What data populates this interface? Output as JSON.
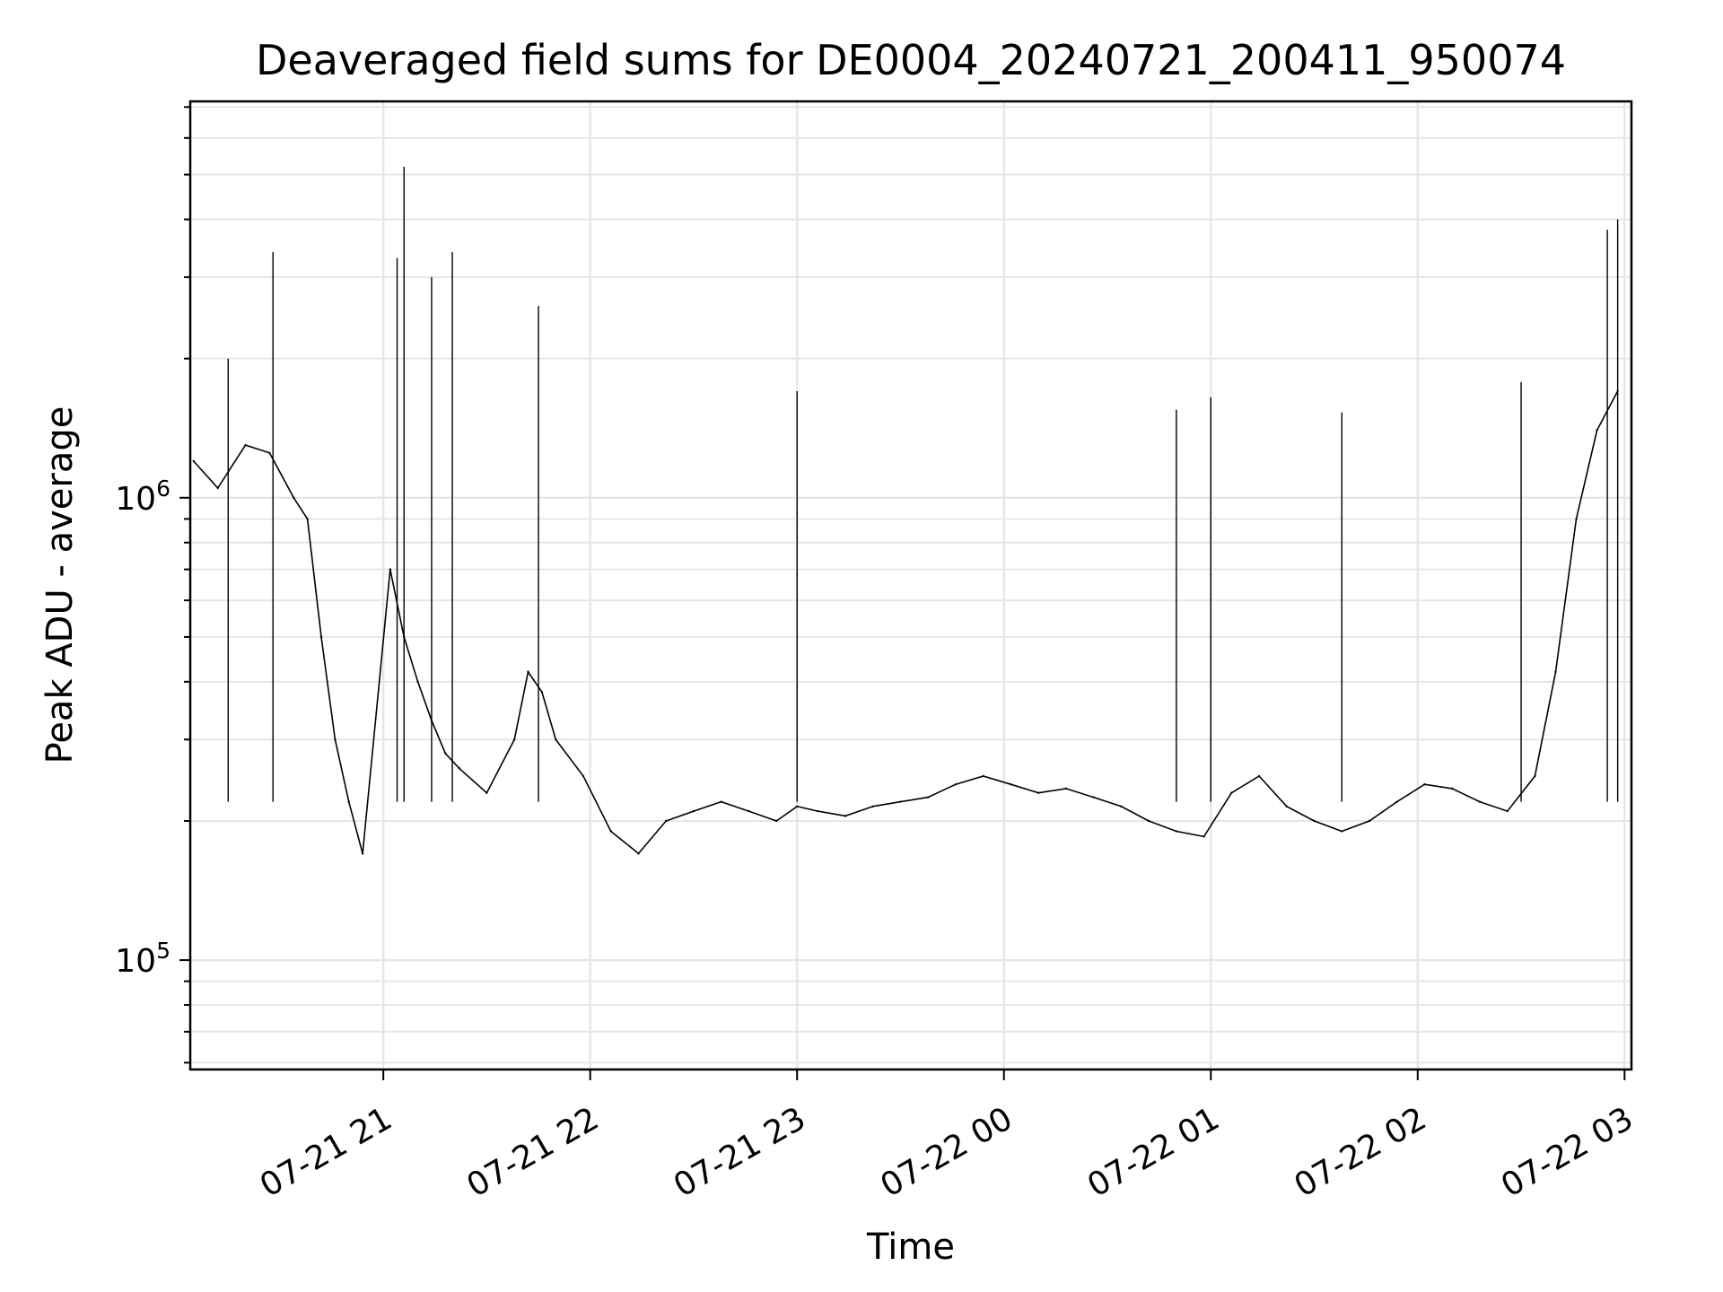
{
  "chart_data": {
    "type": "line",
    "title": "Deaveraged field sums for DE0004_20240721_200411_950074",
    "xlabel": "Time",
    "ylabel": "Peak ADU - average",
    "yscale": "log",
    "xlim": [
      "2024-07-21 20:04",
      "2024-07-22 03:02"
    ],
    "ylim": [
      58000,
      7200000
    ],
    "grid": true,
    "legend": "none",
    "line_color": "#000000",
    "x_ticks": [
      {
        "value": "2024-07-21 21:00",
        "label": "07-21 21"
      },
      {
        "value": "2024-07-21 22:00",
        "label": "07-21 22"
      },
      {
        "value": "2024-07-21 23:00",
        "label": "07-21 23"
      },
      {
        "value": "2024-07-22 00:00",
        "label": "07-22 00"
      },
      {
        "value": "2024-07-22 01:00",
        "label": "07-22 01"
      },
      {
        "value": "2024-07-22 02:00",
        "label": "07-22 02"
      },
      {
        "value": "2024-07-22 03:00",
        "label": "07-22 03"
      }
    ],
    "y_ticks": [
      {
        "value": 100000,
        "base": "10",
        "exp": "5"
      },
      {
        "value": 1000000,
        "base": "10",
        "exp": "6"
      }
    ],
    "series": [
      {
        "x": [
          "2024-07-21 20:05",
          "2024-07-21 20:12",
          "2024-07-21 20:20",
          "2024-07-21 20:27",
          "2024-07-21 20:34",
          "2024-07-21 20:38",
          "2024-07-21 20:42",
          "2024-07-21 20:46",
          "2024-07-21 20:50",
          "2024-07-21 20:54",
          "2024-07-21 21:02",
          "2024-07-21 21:06",
          "2024-07-21 21:10",
          "2024-07-21 21:14",
          "2024-07-21 21:18",
          "2024-07-21 21:22",
          "2024-07-21 21:30",
          "2024-07-21 21:38",
          "2024-07-21 21:42",
          "2024-07-21 21:46",
          "2024-07-21 21:50",
          "2024-07-21 21:58",
          "2024-07-21 22:06",
          "2024-07-21 22:14",
          "2024-07-21 22:22",
          "2024-07-21 22:30",
          "2024-07-21 22:38",
          "2024-07-21 22:46",
          "2024-07-21 22:54",
          "2024-07-21 23:00",
          "2024-07-21 23:06",
          "2024-07-21 23:14",
          "2024-07-21 23:22",
          "2024-07-21 23:30",
          "2024-07-21 23:38",
          "2024-07-21 23:46",
          "2024-07-21 23:54",
          "2024-07-22 00:02",
          "2024-07-22 00:10",
          "2024-07-22 00:18",
          "2024-07-22 00:26",
          "2024-07-22 00:34",
          "2024-07-22 00:42",
          "2024-07-22 00:50",
          "2024-07-22 00:58",
          "2024-07-22 01:06",
          "2024-07-22 01:14",
          "2024-07-22 01:22",
          "2024-07-22 01:30",
          "2024-07-22 01:38",
          "2024-07-22 01:46",
          "2024-07-22 01:54",
          "2024-07-22 02:02",
          "2024-07-22 02:10",
          "2024-07-22 02:18",
          "2024-07-22 02:26",
          "2024-07-22 02:34",
          "2024-07-22 02:40",
          "2024-07-22 02:46",
          "2024-07-22 02:52",
          "2024-07-22 02:58"
        ],
        "y": [
          1200000,
          1050000,
          1300000,
          1250000,
          1000000,
          900000,
          500000,
          300000,
          220000,
          170000,
          700000,
          500000,
          400000,
          330000,
          280000,
          260000,
          230000,
          300000,
          420000,
          380000,
          300000,
          250000,
          190000,
          170000,
          200000,
          210000,
          220000,
          210000,
          200000,
          215000,
          210000,
          205000,
          215000,
          220000,
          225000,
          240000,
          250000,
          240000,
          230000,
          235000,
          225000,
          215000,
          200000,
          190000,
          185000,
          230000,
          250000,
          215000,
          200000,
          190000,
          200000,
          220000,
          240000,
          235000,
          220000,
          210000,
          250000,
          420000,
          900000,
          1400000,
          1700000
        ]
      }
    ],
    "spikes": [
      {
        "x": "2024-07-21 20:15",
        "y": 2000000
      },
      {
        "x": "2024-07-21 20:28",
        "y": 3400000
      },
      {
        "x": "2024-07-21 21:04",
        "y": 3300000
      },
      {
        "x": "2024-07-21 21:06",
        "y": 5200000
      },
      {
        "x": "2024-07-21 21:14",
        "y": 3000000
      },
      {
        "x": "2024-07-21 21:20",
        "y": 3400000
      },
      {
        "x": "2024-07-21 21:45",
        "y": 2600000
      },
      {
        "x": "2024-07-21 23:00",
        "y": 1700000
      },
      {
        "x": "2024-07-22 00:50",
        "y": 1550000
      },
      {
        "x": "2024-07-22 01:00",
        "y": 1650000
      },
      {
        "x": "2024-07-22 01:38",
        "y": 1530000
      },
      {
        "x": "2024-07-22 02:30",
        "y": 1780000
      },
      {
        "x": "2024-07-22 02:55",
        "y": 3800000
      },
      {
        "x": "2024-07-22 02:58",
        "y": 4000000
      }
    ]
  }
}
